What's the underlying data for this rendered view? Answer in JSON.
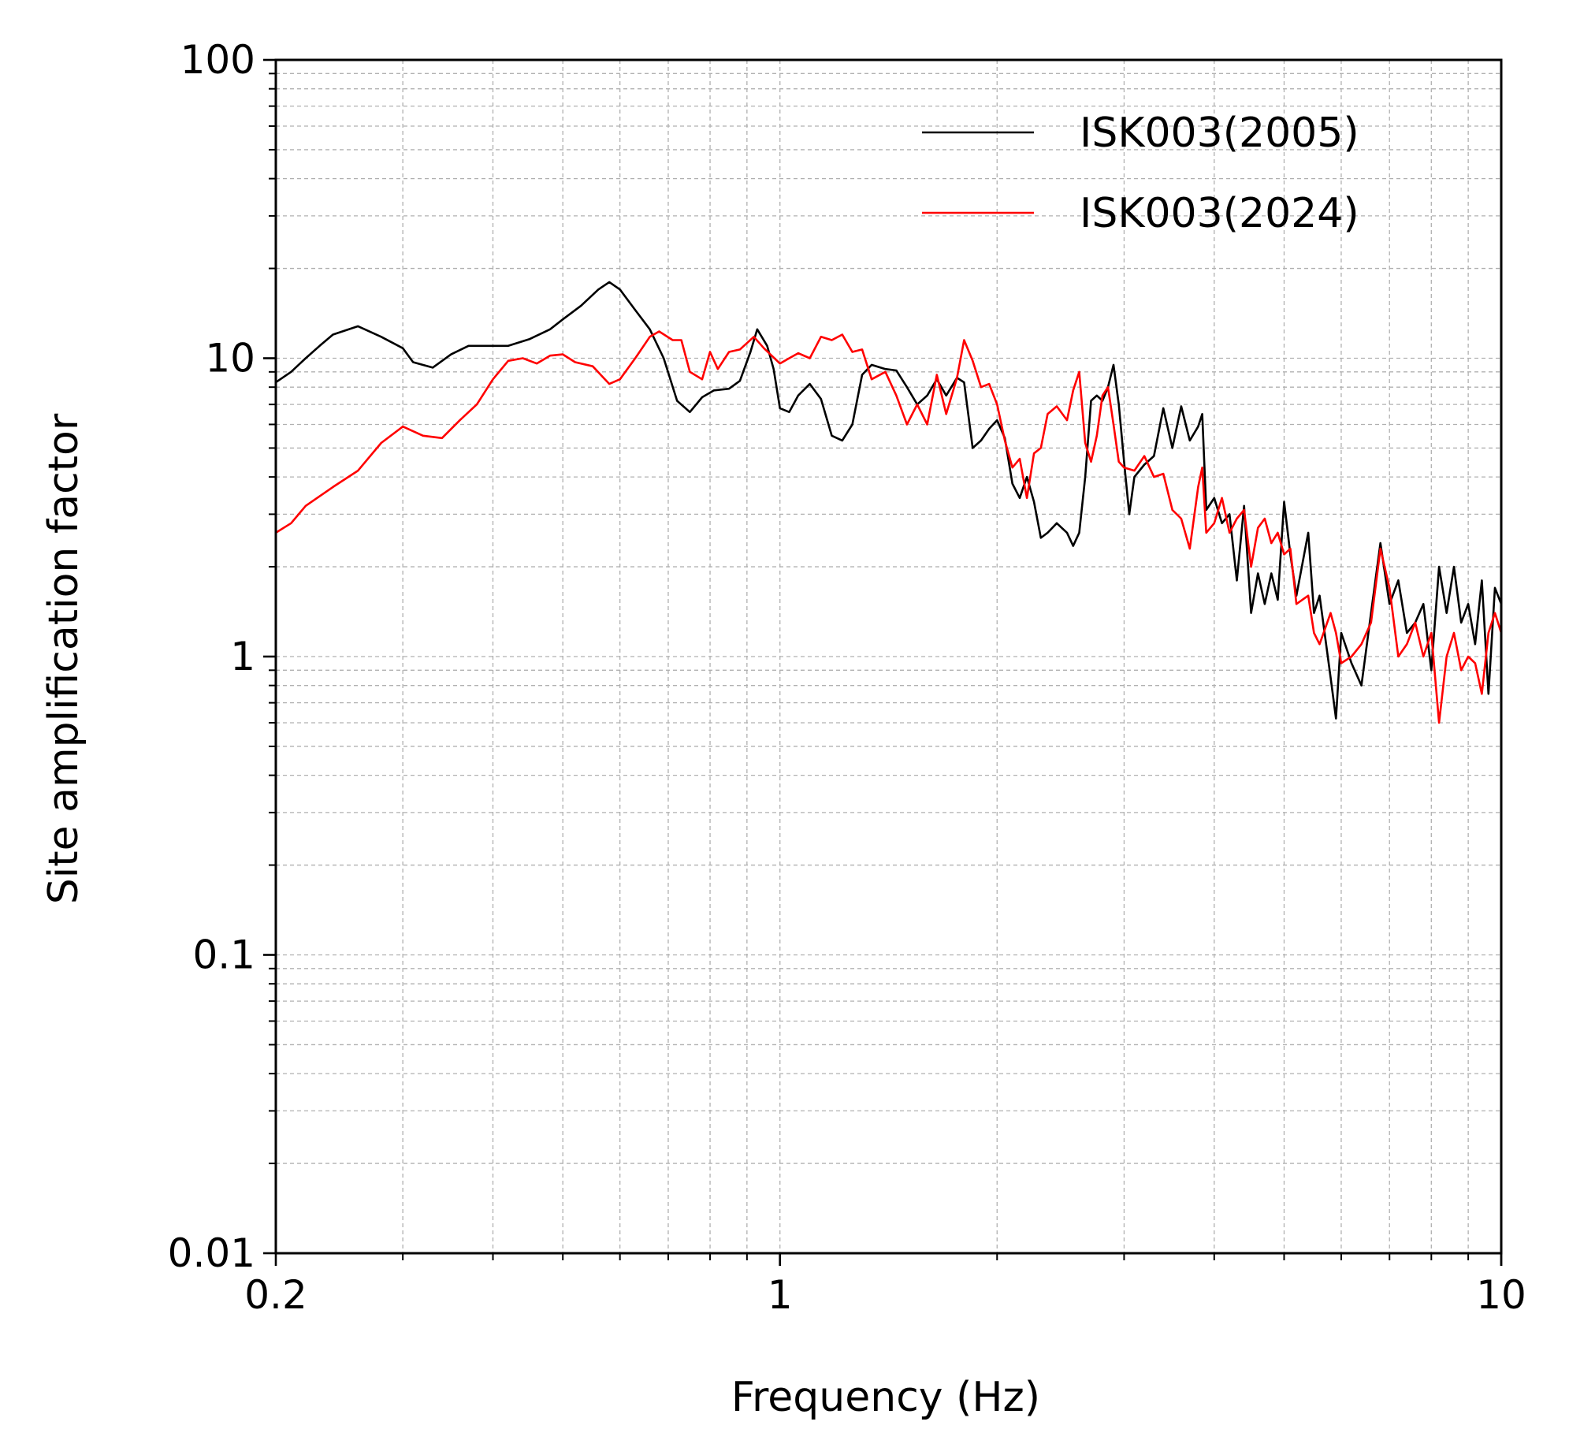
{
  "chart_data": {
    "type": "line",
    "xlabel": "Frequency (Hz)",
    "ylabel": "Site amplification factor",
    "x_scale": "log",
    "y_scale": "log",
    "xlim": [
      0.2,
      10
    ],
    "ylim": [
      0.01,
      100
    ],
    "x_ticks": [
      {
        "value": 0.2,
        "label": "0.2"
      },
      {
        "value": 1,
        "label": "1"
      },
      {
        "value": 10,
        "label": "10"
      }
    ],
    "y_ticks": [
      {
        "value": 0.01,
        "label": "0.01"
      },
      {
        "value": 0.1,
        "label": "0.1"
      },
      {
        "value": 1,
        "label": "1"
      },
      {
        "value": 10,
        "label": "10"
      },
      {
        "value": 100,
        "label": "100"
      }
    ],
    "grid": true,
    "legend_position": "top-right",
    "series": [
      {
        "name": "ISK003(2005)",
        "color": "#000000",
        "points": [
          [
            0.2,
            8.3
          ],
          [
            0.21,
            9.0
          ],
          [
            0.22,
            10.0
          ],
          [
            0.23,
            11.0
          ],
          [
            0.24,
            12.0
          ],
          [
            0.26,
            12.8
          ],
          [
            0.28,
            11.8
          ],
          [
            0.3,
            10.8
          ],
          [
            0.31,
            9.7
          ],
          [
            0.33,
            9.3
          ],
          [
            0.35,
            10.3
          ],
          [
            0.37,
            11.0
          ],
          [
            0.4,
            11.0
          ],
          [
            0.42,
            11.0
          ],
          [
            0.45,
            11.6
          ],
          [
            0.48,
            12.5
          ],
          [
            0.5,
            13.5
          ],
          [
            0.53,
            15.0
          ],
          [
            0.56,
            17.0
          ],
          [
            0.58,
            18.0
          ],
          [
            0.6,
            17.0
          ],
          [
            0.63,
            14.5
          ],
          [
            0.66,
            12.5
          ],
          [
            0.69,
            10.0
          ],
          [
            0.72,
            7.2
          ],
          [
            0.75,
            6.6
          ],
          [
            0.78,
            7.4
          ],
          [
            0.81,
            7.8
          ],
          [
            0.85,
            7.9
          ],
          [
            0.88,
            8.4
          ],
          [
            0.91,
            10.5
          ],
          [
            0.93,
            12.5
          ],
          [
            0.96,
            11.0
          ],
          [
            0.98,
            9.2
          ],
          [
            1.0,
            6.8
          ],
          [
            1.03,
            6.6
          ],
          [
            1.06,
            7.5
          ],
          [
            1.1,
            8.2
          ],
          [
            1.14,
            7.3
          ],
          [
            1.18,
            5.5
          ],
          [
            1.22,
            5.3
          ],
          [
            1.26,
            6.0
          ],
          [
            1.3,
            8.8
          ],
          [
            1.34,
            9.5
          ],
          [
            1.4,
            9.2
          ],
          [
            1.45,
            9.1
          ],
          [
            1.5,
            8.0
          ],
          [
            1.55,
            7.0
          ],
          [
            1.6,
            7.5
          ],
          [
            1.65,
            8.5
          ],
          [
            1.7,
            7.5
          ],
          [
            1.76,
            8.6
          ],
          [
            1.8,
            8.3
          ],
          [
            1.85,
            5.0
          ],
          [
            1.9,
            5.3
          ],
          [
            1.95,
            5.8
          ],
          [
            2.0,
            6.2
          ],
          [
            2.05,
            5.4
          ],
          [
            2.1,
            3.8
          ],
          [
            2.15,
            3.4
          ],
          [
            2.2,
            4.0
          ],
          [
            2.25,
            3.3
          ],
          [
            2.3,
            2.5
          ],
          [
            2.35,
            2.6
          ],
          [
            2.42,
            2.8
          ],
          [
            2.5,
            2.6
          ],
          [
            2.55,
            2.35
          ],
          [
            2.6,
            2.6
          ],
          [
            2.65,
            4.0
          ],
          [
            2.7,
            7.2
          ],
          [
            2.75,
            7.5
          ],
          [
            2.8,
            7.2
          ],
          [
            2.85,
            8.0
          ],
          [
            2.9,
            9.5
          ],
          [
            2.95,
            7.0
          ],
          [
            3.0,
            4.5
          ],
          [
            3.05,
            3.0
          ],
          [
            3.1,
            4.0
          ],
          [
            3.2,
            4.4
          ],
          [
            3.3,
            4.7
          ],
          [
            3.4,
            6.8
          ],
          [
            3.5,
            5.0
          ],
          [
            3.6,
            6.9
          ],
          [
            3.7,
            5.3
          ],
          [
            3.8,
            5.9
          ],
          [
            3.85,
            6.5
          ],
          [
            3.9,
            3.1
          ],
          [
            4.0,
            3.4
          ],
          [
            4.1,
            2.8
          ],
          [
            4.2,
            3.0
          ],
          [
            4.3,
            1.8
          ],
          [
            4.4,
            3.2
          ],
          [
            4.5,
            1.4
          ],
          [
            4.6,
            1.9
          ],
          [
            4.7,
            1.5
          ],
          [
            4.8,
            1.9
          ],
          [
            4.9,
            1.55
          ],
          [
            5.0,
            3.3
          ],
          [
            5.1,
            2.2
          ],
          [
            5.2,
            1.6
          ],
          [
            5.4,
            2.6
          ],
          [
            5.5,
            1.4
          ],
          [
            5.6,
            1.6
          ],
          [
            5.8,
            0.85
          ],
          [
            5.9,
            0.62
          ],
          [
            6.0,
            1.2
          ],
          [
            6.2,
            0.95
          ],
          [
            6.4,
            0.8
          ],
          [
            6.6,
            1.4
          ],
          [
            6.8,
            2.4
          ],
          [
            7.0,
            1.5
          ],
          [
            7.2,
            1.8
          ],
          [
            7.4,
            1.2
          ],
          [
            7.6,
            1.3
          ],
          [
            7.8,
            1.5
          ],
          [
            8.0,
            0.9
          ],
          [
            8.2,
            2.0
          ],
          [
            8.4,
            1.4
          ],
          [
            8.6,
            2.0
          ],
          [
            8.8,
            1.3
          ],
          [
            9.0,
            1.5
          ],
          [
            9.2,
            1.1
          ],
          [
            9.4,
            1.8
          ],
          [
            9.6,
            0.75
          ],
          [
            9.8,
            1.7
          ],
          [
            10.0,
            1.5
          ]
        ]
      },
      {
        "name": "ISK003(2024)",
        "color": "#ff0000",
        "points": [
          [
            0.2,
            2.6
          ],
          [
            0.21,
            2.8
          ],
          [
            0.22,
            3.2
          ],
          [
            0.24,
            3.7
          ],
          [
            0.26,
            4.2
          ],
          [
            0.28,
            5.2
          ],
          [
            0.3,
            5.9
          ],
          [
            0.32,
            5.5
          ],
          [
            0.34,
            5.4
          ],
          [
            0.36,
            6.2
          ],
          [
            0.38,
            7.0
          ],
          [
            0.4,
            8.5
          ],
          [
            0.42,
            9.8
          ],
          [
            0.44,
            10.0
          ],
          [
            0.46,
            9.6
          ],
          [
            0.48,
            10.2
          ],
          [
            0.5,
            10.3
          ],
          [
            0.52,
            9.7
          ],
          [
            0.55,
            9.4
          ],
          [
            0.58,
            8.2
          ],
          [
            0.6,
            8.5
          ],
          [
            0.63,
            10.0
          ],
          [
            0.66,
            11.8
          ],
          [
            0.68,
            12.3
          ],
          [
            0.71,
            11.5
          ],
          [
            0.73,
            11.5
          ],
          [
            0.75,
            9.0
          ],
          [
            0.78,
            8.5
          ],
          [
            0.8,
            10.5
          ],
          [
            0.82,
            9.2
          ],
          [
            0.85,
            10.5
          ],
          [
            0.88,
            10.7
          ],
          [
            0.92,
            11.8
          ],
          [
            0.95,
            10.8
          ],
          [
            1.0,
            9.6
          ],
          [
            1.03,
            10.0
          ],
          [
            1.06,
            10.4
          ],
          [
            1.1,
            10.0
          ],
          [
            1.14,
            11.8
          ],
          [
            1.18,
            11.5
          ],
          [
            1.22,
            12.0
          ],
          [
            1.26,
            10.5
          ],
          [
            1.3,
            10.7
          ],
          [
            1.34,
            8.5
          ],
          [
            1.4,
            9.0
          ],
          [
            1.45,
            7.5
          ],
          [
            1.5,
            6.0
          ],
          [
            1.55,
            7.0
          ],
          [
            1.6,
            6.0
          ],
          [
            1.65,
            8.8
          ],
          [
            1.7,
            6.5
          ],
          [
            1.76,
            8.6
          ],
          [
            1.8,
            11.5
          ],
          [
            1.85,
            9.8
          ],
          [
            1.9,
            8.0
          ],
          [
            1.95,
            8.2
          ],
          [
            2.0,
            7.0
          ],
          [
            2.05,
            5.3
          ],
          [
            2.1,
            4.3
          ],
          [
            2.15,
            4.6
          ],
          [
            2.2,
            3.4
          ],
          [
            2.25,
            4.8
          ],
          [
            2.3,
            5.0
          ],
          [
            2.35,
            6.5
          ],
          [
            2.42,
            6.9
          ],
          [
            2.5,
            6.2
          ],
          [
            2.55,
            7.8
          ],
          [
            2.6,
            9.0
          ],
          [
            2.65,
            5.2
          ],
          [
            2.7,
            4.5
          ],
          [
            2.75,
            5.5
          ],
          [
            2.8,
            7.5
          ],
          [
            2.85,
            8.0
          ],
          [
            2.9,
            6.0
          ],
          [
            2.95,
            4.5
          ],
          [
            3.0,
            4.3
          ],
          [
            3.1,
            4.2
          ],
          [
            3.2,
            4.7
          ],
          [
            3.3,
            4.0
          ],
          [
            3.4,
            4.1
          ],
          [
            3.5,
            3.1
          ],
          [
            3.6,
            2.9
          ],
          [
            3.7,
            2.3
          ],
          [
            3.8,
            3.7
          ],
          [
            3.85,
            4.3
          ],
          [
            3.9,
            2.6
          ],
          [
            4.0,
            2.8
          ],
          [
            4.1,
            3.4
          ],
          [
            4.2,
            2.6
          ],
          [
            4.3,
            2.9
          ],
          [
            4.4,
            3.1
          ],
          [
            4.5,
            2.0
          ],
          [
            4.6,
            2.7
          ],
          [
            4.7,
            2.9
          ],
          [
            4.8,
            2.4
          ],
          [
            4.9,
            2.6
          ],
          [
            5.0,
            2.2
          ],
          [
            5.1,
            2.3
          ],
          [
            5.2,
            1.5
          ],
          [
            5.4,
            1.6
          ],
          [
            5.5,
            1.2
          ],
          [
            5.6,
            1.1
          ],
          [
            5.8,
            1.4
          ],
          [
            5.9,
            1.2
          ],
          [
            6.0,
            0.95
          ],
          [
            6.2,
            1.0
          ],
          [
            6.4,
            1.1
          ],
          [
            6.6,
            1.3
          ],
          [
            6.8,
            2.3
          ],
          [
            7.0,
            1.7
          ],
          [
            7.2,
            1.0
          ],
          [
            7.4,
            1.1
          ],
          [
            7.6,
            1.3
          ],
          [
            7.8,
            1.0
          ],
          [
            8.0,
            1.2
          ],
          [
            8.2,
            0.6
          ],
          [
            8.4,
            1.0
          ],
          [
            8.6,
            1.2
          ],
          [
            8.8,
            0.9
          ],
          [
            9.0,
            1.0
          ],
          [
            9.2,
            0.95
          ],
          [
            9.4,
            0.75
          ],
          [
            9.6,
            1.2
          ],
          [
            9.8,
            1.4
          ],
          [
            10.0,
            1.2
          ]
        ]
      }
    ]
  }
}
